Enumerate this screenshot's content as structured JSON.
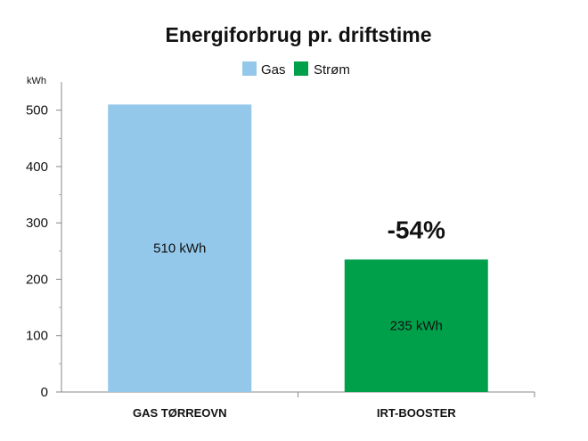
{
  "chart_data": {
    "type": "bar",
    "title": "Energiforbrug pr. driftstime",
    "ylabel": "kWh",
    "xlabel": "",
    "categories": [
      "GAS TØRREOVN",
      "IRT-BOOSTER"
    ],
    "values": [
      510,
      235
    ],
    "data_labels": [
      "510 kWh",
      "235 kWh"
    ],
    "ylim": [
      0,
      550
    ],
    "yticks": [
      0,
      100,
      200,
      300,
      400,
      500
    ],
    "grid": false,
    "legend": {
      "placement": "top-center",
      "entries": [
        {
          "label": "Gas",
          "color": "#93c8ea"
        },
        {
          "label": "Strøm",
          "color": "#00a04a"
        }
      ]
    },
    "bar_colors": [
      "#93c8ea",
      "#00a04a"
    ],
    "annotation": {
      "text": "-54%",
      "category": "IRT-BOOSTER"
    }
  }
}
